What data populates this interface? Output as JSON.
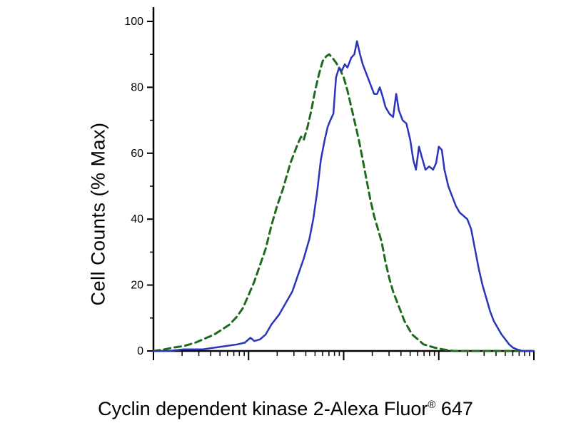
{
  "figure": {
    "ylabel": "Cell Counts (% Max)",
    "xlabel_main": "Cyclin dependent kinase 2-Alexa Fluor",
    "xlabel_sup": "®",
    "xlabel_suffix": " 647"
  },
  "chart_data": {
    "type": "line",
    "title": "",
    "ylabel": "Cell Counts (% Max)",
    "xlabel": "Cyclin dependent kinase 2-Alexa Fluor® 647",
    "x_axis": {
      "scale": "log",
      "decades": 4,
      "labels_visible": false
    },
    "y_axis": {
      "range": [
        0,
        100
      ],
      "ticks": [
        0,
        20,
        40,
        60,
        80,
        100
      ],
      "minor_ticks": [
        10,
        30,
        50,
        70,
        90
      ]
    },
    "axis_color": "#000000",
    "series": [
      {
        "name": "green-dashed-curve",
        "style": "dashed",
        "color": "#1e6b1e",
        "stroke_width": 3,
        "dash": "9 6",
        "points": [
          [
            0,
            0
          ],
          [
            3,
            0.5
          ],
          [
            5,
            1
          ],
          [
            8,
            1.5
          ],
          [
            11,
            2.5
          ],
          [
            14,
            4
          ],
          [
            16,
            5
          ],
          [
            18,
            6.5
          ],
          [
            20,
            8
          ],
          [
            22,
            10.5
          ],
          [
            23.5,
            13
          ],
          [
            25,
            17
          ],
          [
            26.5,
            21
          ],
          [
            28,
            26
          ],
          [
            29.5,
            31
          ],
          [
            31,
            38
          ],
          [
            32.5,
            44
          ],
          [
            34,
            49
          ],
          [
            35,
            53
          ],
          [
            36,
            57
          ],
          [
            37,
            60
          ],
          [
            38,
            63
          ],
          [
            38.8,
            65
          ],
          [
            39.5,
            64
          ],
          [
            40.5,
            68
          ],
          [
            41.5,
            73
          ],
          [
            42.5,
            79
          ],
          [
            43.5,
            84
          ],
          [
            44.5,
            88
          ],
          [
            45.5,
            89.5
          ],
          [
            46.2,
            90
          ],
          [
            47,
            89
          ],
          [
            48,
            87.5
          ],
          [
            49,
            85.5
          ],
          [
            50,
            83
          ],
          [
            51,
            79
          ],
          [
            52,
            74
          ],
          [
            53,
            69
          ],
          [
            54,
            64
          ],
          [
            55,
            58
          ],
          [
            56,
            52
          ],
          [
            57,
            46
          ],
          [
            58,
            41
          ],
          [
            59,
            37
          ],
          [
            60,
            33
          ],
          [
            61,
            27
          ],
          [
            62,
            22
          ],
          [
            63,
            18
          ],
          [
            64,
            15
          ],
          [
            65,
            12
          ],
          [
            66,
            9
          ],
          [
            67,
            7
          ],
          [
            68,
            5
          ],
          [
            69,
            4
          ],
          [
            70,
            3
          ],
          [
            71,
            2
          ],
          [
            72.5,
            1.5
          ],
          [
            74,
            1
          ],
          [
            76,
            0.5
          ],
          [
            79,
            0
          ],
          [
            100,
            0
          ]
        ]
      },
      {
        "name": "blue-solid-curve",
        "style": "solid",
        "color": "#2a35b8",
        "stroke_width": 2.5,
        "dash": "",
        "points": [
          [
            0,
            0
          ],
          [
            4,
            0
          ],
          [
            8,
            0.5
          ],
          [
            13,
            0.5
          ],
          [
            16,
            1
          ],
          [
            19,
            1.5
          ],
          [
            22,
            2
          ],
          [
            24,
            2.5
          ],
          [
            25.5,
            4
          ],
          [
            26.5,
            3
          ],
          [
            28,
            3.5
          ],
          [
            29.5,
            5
          ],
          [
            31,
            8
          ],
          [
            33,
            11
          ],
          [
            35,
            15
          ],
          [
            36.5,
            18
          ],
          [
            38,
            23
          ],
          [
            39.5,
            28
          ],
          [
            41,
            34
          ],
          [
            42,
            40
          ],
          [
            43,
            48
          ],
          [
            44,
            58
          ],
          [
            45,
            64
          ],
          [
            45.8,
            68
          ],
          [
            46.5,
            70
          ],
          [
            47.3,
            72
          ],
          [
            48,
            83
          ],
          [
            48.8,
            86
          ],
          [
            49.5,
            85
          ],
          [
            50.3,
            87
          ],
          [
            51,
            86
          ],
          [
            52,
            89
          ],
          [
            52.8,
            90
          ],
          [
            53.5,
            94
          ],
          [
            54.3,
            90
          ],
          [
            55,
            87
          ],
          [
            56,
            84
          ],
          [
            57,
            81
          ],
          [
            58,
            78
          ],
          [
            58.8,
            78
          ],
          [
            59.5,
            80
          ],
          [
            60.3,
            77
          ],
          [
            61,
            74
          ],
          [
            62,
            72
          ],
          [
            63,
            71
          ],
          [
            63.8,
            78
          ],
          [
            64.5,
            73
          ],
          [
            65.5,
            70
          ],
          [
            66.5,
            69
          ],
          [
            67.5,
            64
          ],
          [
            68.3,
            58
          ],
          [
            69,
            55
          ],
          [
            69.8,
            62
          ],
          [
            70.5,
            59
          ],
          [
            71.5,
            55
          ],
          [
            72.5,
            56
          ],
          [
            73.5,
            55
          ],
          [
            74.3,
            57
          ],
          [
            75,
            62
          ],
          [
            75.8,
            61
          ],
          [
            76.5,
            55
          ],
          [
            77.5,
            50
          ],
          [
            78.5,
            47
          ],
          [
            79.5,
            44
          ],
          [
            80.5,
            42
          ],
          [
            81.5,
            41
          ],
          [
            82.5,
            40
          ],
          [
            83.5,
            37
          ],
          [
            84.5,
            31
          ],
          [
            85.5,
            25
          ],
          [
            86.5,
            20
          ],
          [
            87.5,
            16
          ],
          [
            88.5,
            12
          ],
          [
            89.5,
            9
          ],
          [
            90.5,
            7
          ],
          [
            91.5,
            5
          ],
          [
            92.5,
            3.5
          ],
          [
            93.5,
            2
          ],
          [
            94.5,
            1
          ],
          [
            95.5,
            0.5
          ],
          [
            97,
            0
          ],
          [
            100,
            0
          ]
        ]
      }
    ]
  }
}
